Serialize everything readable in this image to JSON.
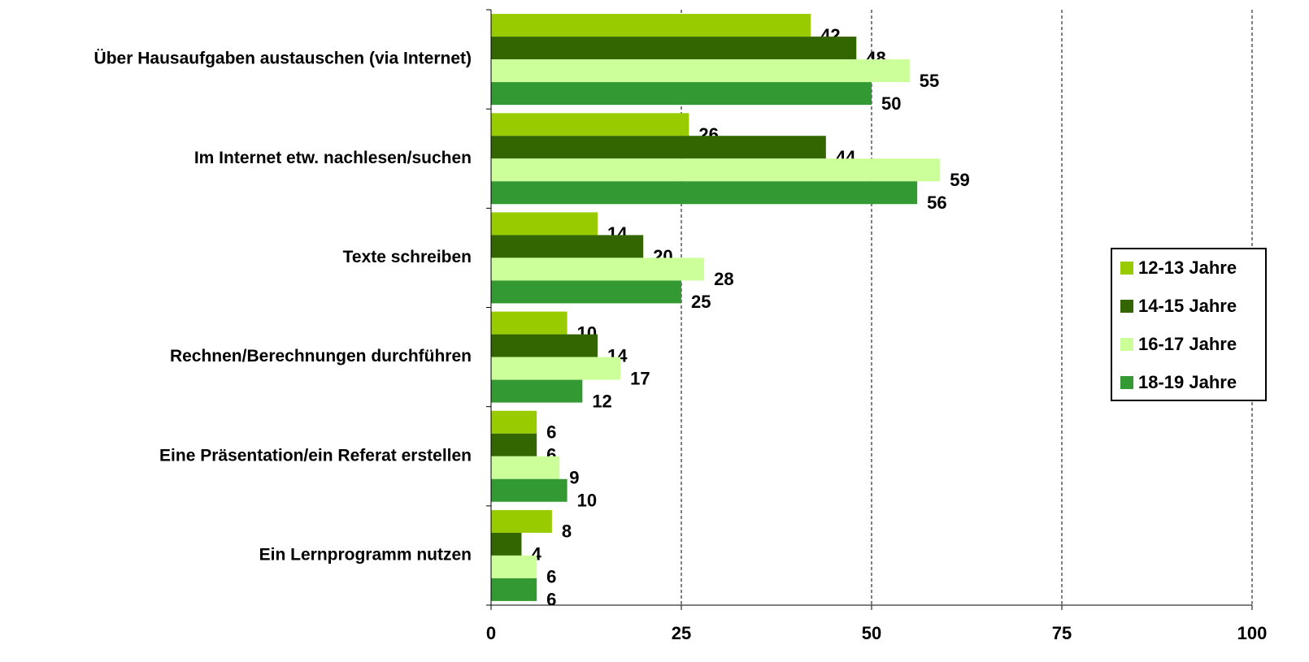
{
  "chart_data": {
    "type": "barh",
    "categories": [
      "Über Hausaufgaben austauschen (via Internet)",
      "Im Internet etw. nachlesen/suchen",
      "Texte schreiben",
      "Rechnen/Berechnungen durchführen",
      "Eine Präsentation/ein Referat erstellen",
      "Ein Lernprogramm nutzen"
    ],
    "series": [
      {
        "name": "12-13 Jahre",
        "color": "#99cc00",
        "values": [
          42,
          26,
          14,
          10,
          6,
          8
        ]
      },
      {
        "name": "14-15 Jahre",
        "color": "#336600",
        "values": [
          48,
          44,
          20,
          14,
          6,
          4
        ]
      },
      {
        "name": "16-17 Jahre",
        "color": "#ccff99",
        "values": [
          55,
          59,
          28,
          17,
          9,
          6
        ]
      },
      {
        "name": "18-19 Jahre",
        "color": "#339933",
        "values": [
          50,
          56,
          25,
          12,
          10,
          6
        ]
      }
    ],
    "xlim": [
      0,
      100
    ],
    "xticks": [
      0,
      25,
      50,
      75,
      100
    ],
    "grid": true,
    "legend": "right"
  }
}
